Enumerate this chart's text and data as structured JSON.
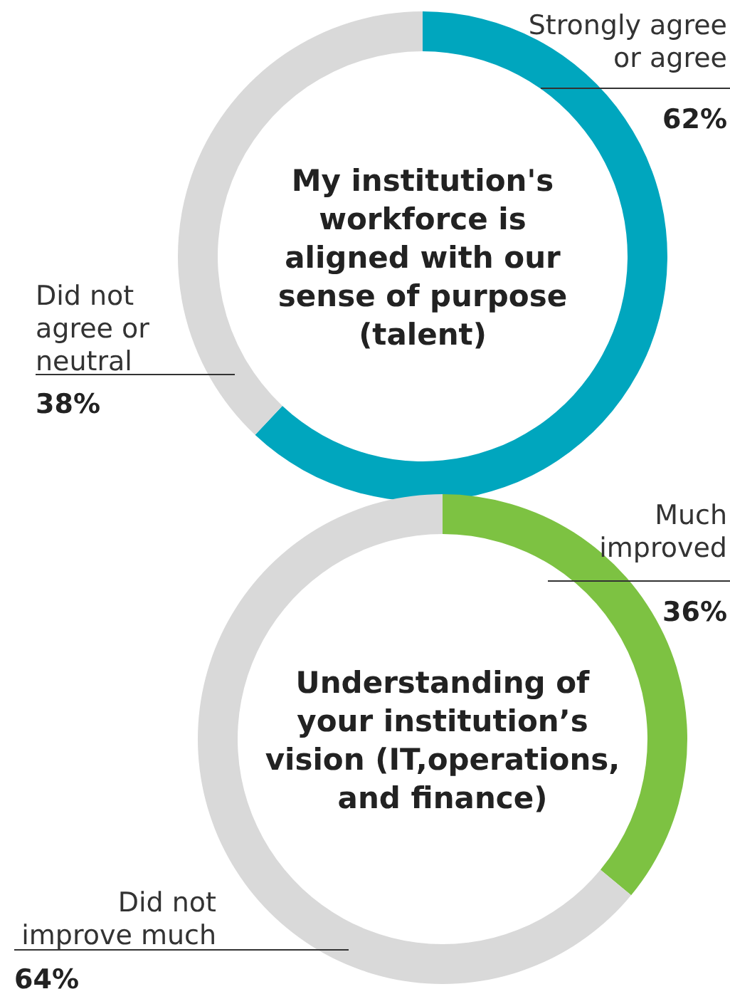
{
  "chart_data": [
    {
      "type": "donut",
      "title": "My institution's workforce is aligned with our sense of purpose (talent)",
      "categories": [
        "Strongly agree or agree",
        "Did not agree or neutral"
      ],
      "values": [
        62,
        38
      ],
      "colors": [
        "#00a6be",
        "#d9d9d9"
      ],
      "value_labels": [
        "62%",
        "38%"
      ]
    },
    {
      "type": "donut",
      "title": "Understanding of your institution’s vision (IT,operations, and finance)",
      "categories": [
        "Much improved",
        "Did not improve much"
      ],
      "values": [
        36,
        64
      ],
      "colors": [
        "#7dc242",
        "#d9d9d9"
      ],
      "value_labels": [
        "36%",
        "64%"
      ]
    }
  ]
}
